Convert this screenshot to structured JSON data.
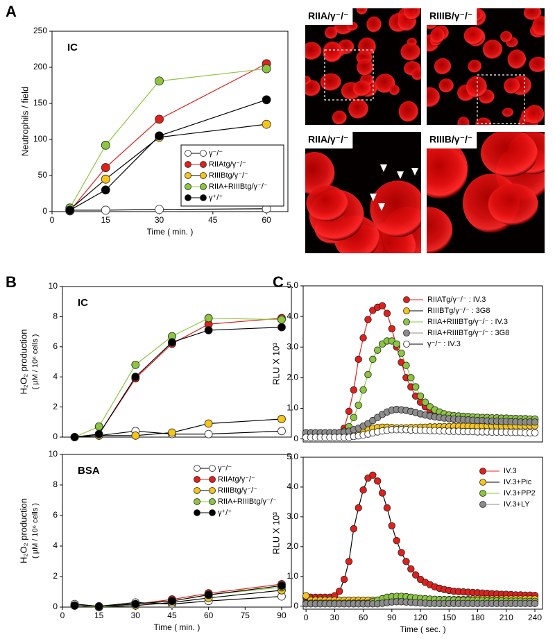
{
  "panels": [
    "A",
    "B",
    "C"
  ],
  "micrographs": [
    {
      "label": "RIIA/γ⁻/⁻"
    },
    {
      "label": "RIIIB/γ⁻/⁻"
    },
    {
      "label": "RIIA/γ⁻/⁻"
    },
    {
      "label": "RIIIB/γ⁻/⁻"
    }
  ],
  "chart_data": [
    {
      "type": "line",
      "annotation": "IC",
      "xlabel": "Time ( min. )",
      "ylabel": "Neutrophils / field",
      "x": [
        5,
        15,
        30,
        60
      ],
      "xlim": [
        0,
        66
      ],
      "xticks": [
        0,
        15,
        30,
        45,
        60
      ],
      "ylim": [
        0,
        250
      ],
      "yticks": [
        0,
        50,
        100,
        150,
        200,
        250
      ],
      "legend": "lower right",
      "legend_frame": true,
      "series": [
        {
          "name": "γ⁻/⁻",
          "color": "#ffffff",
          "values": [
            2,
            2,
            3,
            4
          ]
        },
        {
          "name": "RIIAtg/γ⁻/⁻",
          "color": "#e0201b",
          "values": [
            1,
            61,
            128,
            205
          ]
        },
        {
          "name": "RIIIBtg/γ⁻/⁻",
          "color": "#f5c518",
          "values": [
            3,
            45,
            103,
            121
          ]
        },
        {
          "name": "RIIA+RIIIBtg/γ⁻/⁻",
          "color": "#8cc63f",
          "values": [
            5,
            92,
            181,
            198
          ]
        },
        {
          "name": "γ⁺/⁺",
          "color": "#000000",
          "values": [
            2,
            30,
            105,
            155
          ]
        }
      ]
    },
    {
      "type": "line",
      "annotation": "IC",
      "ylabel": "H₂O₂ production",
      "ylabel2": "( µM / 10⁶ cells )",
      "x": [
        5,
        15,
        30,
        45,
        60,
        90
      ],
      "xlim": [
        0,
        94
      ],
      "ylim": [
        0,
        10
      ],
      "yticks": [
        0,
        2,
        4,
        6,
        8,
        10
      ],
      "series": [
        {
          "color": "#ffffff",
          "values": [
            0,
            0.1,
            0.4,
            0.2,
            0.2,
            0.4
          ]
        },
        {
          "color": "#e0201b",
          "values": [
            0,
            0.2,
            3.9,
            6.2,
            7.5,
            7.9
          ]
        },
        {
          "color": "#f5c518",
          "values": [
            0,
            0.1,
            0.1,
            0.3,
            0.9,
            1.2
          ]
        },
        {
          "color": "#8cc63f",
          "values": [
            0,
            0.7,
            4.8,
            6.7,
            7.9,
            7.8
          ]
        },
        {
          "color": "#000000",
          "values": [
            0,
            0.2,
            4.0,
            6.3,
            7.1,
            7.3
          ]
        }
      ]
    },
    {
      "type": "line",
      "annotation": "BSA",
      "xlabel": "Time ( min. )",
      "ylabel": "H₂O₂ production",
      "ylabel2": "( µM / 10⁶ cells )",
      "x": [
        5,
        15,
        30,
        45,
        60,
        90
      ],
      "xlim": [
        0,
        94
      ],
      "xticks": [
        0,
        15,
        30,
        45,
        60,
        75,
        90
      ],
      "ylim": [
        0,
        10
      ],
      "yticks": [
        0,
        2,
        4,
        6,
        8,
        10
      ],
      "legend": "upper right",
      "series": [
        {
          "name": "γ⁻/⁻",
          "color": "#ffffff",
          "values": [
            0.2,
            0.05,
            0.3,
            0.2,
            0.4,
            0.7
          ]
        },
        {
          "name": "RIIAtg/γ⁻/⁻",
          "color": "#e0201b",
          "values": [
            0.1,
            0,
            0.2,
            0.5,
            0.9,
            1.5
          ]
        },
        {
          "name": "RIIIBtg/γ⁻/⁻",
          "color": "#f5c518",
          "values": [
            0.1,
            0,
            0.1,
            0.3,
            0.6,
            1.1
          ]
        },
        {
          "name": "RIIA+RIIIBtg/γ⁻/⁻",
          "color": "#8cc63f",
          "values": [
            0.1,
            0,
            0.2,
            0.4,
            0.8,
            1.3
          ]
        },
        {
          "name": "γ⁺/⁺",
          "color": "#000000",
          "values": [
            0.1,
            0.05,
            0.2,
            0.4,
            0.8,
            1.4
          ]
        }
      ]
    },
    {
      "type": "line",
      "ylabel": "RLU X 10³",
      "x": [
        0,
        5,
        10,
        15,
        20,
        25,
        30,
        35,
        40,
        45,
        50,
        55,
        60,
        65,
        70,
        75,
        80,
        85,
        90,
        95,
        100,
        105,
        110,
        115,
        120,
        125,
        130,
        135,
        140,
        145,
        150,
        155,
        160,
        165,
        170,
        175,
        180,
        185,
        190,
        195,
        200,
        205,
        210,
        215,
        220,
        225,
        230,
        235,
        240
      ],
      "xlim": [
        -3,
        248
      ],
      "ylim": [
        -0.1,
        5
      ],
      "yticks": [
        0,
        {
          "value": 1,
          "label": "1.0"
        },
        {
          "value": 2,
          "label": "2.0"
        },
        {
          "value": 3,
          "label": "3.0"
        },
        {
          "value": 4,
          "label": "4.0"
        },
        {
          "value": 5,
          "label": "5.0"
        }
      ],
      "legend": "upper right",
      "series": [
        {
          "name": "RIIATg/γ⁻/⁻ : IV.3",
          "color": "#e0201b",
          "values": [
            0.15,
            0.15,
            0.15,
            0.15,
            0.15,
            0.15,
            0.17,
            0.2,
            0.35,
            0.9,
            1.6,
            2.6,
            3.3,
            3.9,
            4.2,
            4.3,
            4.35,
            4.1,
            3.6,
            3.0,
            2.5,
            2.0,
            1.7,
            1.4,
            1.2,
            1.05,
            0.95,
            0.88,
            0.82,
            0.78,
            0.75,
            0.73,
            0.72,
            0.71,
            0.7,
            0.7,
            0.69,
            0.68,
            0.68,
            0.67,
            0.67,
            0.66,
            0.66,
            0.65,
            0.65,
            0.64,
            0.64,
            0.63,
            0.63
          ]
        },
        {
          "name": "RIIIBTg/γ⁻/⁻ : 3G8",
          "color": "#f5c518",
          "values": [
            0.1,
            0.1,
            0.1,
            0.1,
            0.1,
            0.1,
            0.1,
            0.1,
            0.12,
            0.15,
            0.2,
            0.25,
            0.3,
            0.33,
            0.35,
            0.37,
            0.38,
            0.38,
            0.37,
            0.36,
            0.36,
            0.36,
            0.37,
            0.37,
            0.38,
            0.38,
            0.39,
            0.39,
            0.4,
            0.4,
            0.4,
            0.41,
            0.41,
            0.41,
            0.41,
            0.41,
            0.41,
            0.42,
            0.42,
            0.42,
            0.42,
            0.42,
            0.42,
            0.43,
            0.43,
            0.43,
            0.43,
            0.43,
            0.43
          ]
        },
        {
          "name": "RIIA+RIIIBTg/γ⁻/⁻ : IV.3",
          "color": "#8cc63f",
          "values": [
            0.2,
            0.2,
            0.2,
            0.2,
            0.2,
            0.2,
            0.2,
            0.2,
            0.25,
            0.4,
            0.7,
            1.1,
            1.6,
            2.1,
            2.6,
            2.9,
            3.1,
            3.2,
            3.2,
            3.1,
            2.8,
            2.4,
            2.0,
            1.7,
            1.4,
            1.2,
            1.05,
            0.95,
            0.88,
            0.82,
            0.78,
            0.76,
            0.75,
            0.74,
            0.73,
            0.72,
            0.71,
            0.7,
            0.7,
            0.69,
            0.69,
            0.68,
            0.68,
            0.67,
            0.67,
            0.66,
            0.66,
            0.65,
            0.65
          ]
        },
        {
          "name": "RIIA+RIIIBTg/γ⁻/⁻ : 3G8",
          "color": "#8c8c8c",
          "values": [
            0.2,
            0.2,
            0.2,
            0.2,
            0.2,
            0.2,
            0.2,
            0.2,
            0.22,
            0.25,
            0.3,
            0.35,
            0.42,
            0.5,
            0.6,
            0.7,
            0.8,
            0.88,
            0.94,
            0.96,
            0.95,
            0.93,
            0.9,
            0.86,
            0.82,
            0.78,
            0.75,
            0.72,
            0.7,
            0.68,
            0.66,
            0.65,
            0.64,
            0.63,
            0.62,
            0.61,
            0.6,
            0.6,
            0.59,
            0.58,
            0.58,
            0.57,
            0.57,
            0.56,
            0.56,
            0.55,
            0.55,
            0.55,
            0.55
          ]
        },
        {
          "name": "γ⁻/⁻ : IV.3",
          "color": "#ffffff",
          "values": [
            0.05,
            0.05,
            0.05,
            0.05,
            0.05,
            0.05,
            0.05,
            0.05,
            0.05,
            0.05,
            0.08,
            0.1,
            0.13,
            0.16,
            0.2,
            0.23,
            0.26,
            0.28,
            0.3,
            0.3,
            0.3,
            0.3,
            0.29,
            0.29,
            0.28,
            0.28,
            0.27,
            0.27,
            0.26,
            0.26,
            0.25,
            0.25,
            0.25,
            0.24,
            0.24,
            0.24,
            0.23,
            0.23,
            0.23,
            0.22,
            0.22,
            0.22,
            0.22,
            0.21,
            0.21,
            0.21,
            0.2,
            0.2,
            0.2
          ]
        }
      ]
    },
    {
      "type": "line",
      "xlabel": "Time ( sec. )",
      "ylabel": "RLU X 10³",
      "x": [
        0,
        5,
        10,
        15,
        20,
        25,
        30,
        35,
        40,
        45,
        50,
        55,
        60,
        65,
        70,
        75,
        80,
        85,
        90,
        95,
        100,
        105,
        110,
        115,
        120,
        125,
        130,
        135,
        140,
        145,
        150,
        155,
        160,
        165,
        170,
        175,
        180,
        185,
        190,
        195,
        200,
        205,
        210,
        215,
        220,
        225,
        230,
        235,
        240
      ],
      "xlim": [
        -3,
        248
      ],
      "xticks": [
        0,
        30,
        60,
        90,
        120,
        150,
        180,
        210,
        240
      ],
      "ylim": [
        -0.1,
        5
      ],
      "yticks": [
        0,
        {
          "value": 1,
          "label": "1.0"
        },
        {
          "value": 2,
          "label": "2.0"
        },
        {
          "value": 3,
          "label": "3.0"
        },
        {
          "value": 4,
          "label": "4.0"
        },
        {
          "value": 5,
          "label": "5.0"
        }
      ],
      "legend": "upper right",
      "series": [
        {
          "name": "IV.3",
          "color": "#e0201b",
          "values": [
            0.3,
            0.3,
            0.3,
            0.3,
            0.3,
            0.3,
            0.35,
            0.5,
            0.9,
            1.5,
            2.6,
            3.3,
            3.9,
            4.3,
            4.4,
            4.2,
            3.8,
            3.3,
            2.7,
            2.2,
            1.8,
            1.5,
            1.25,
            1.05,
            0.9,
            0.8,
            0.72,
            0.65,
            0.6,
            0.56,
            0.53,
            0.5,
            0.49,
            0.48,
            0.47,
            0.46,
            0.45,
            0.44,
            0.43,
            0.42,
            0.41,
            0.4,
            0.4,
            0.39,
            0.38,
            0.38,
            0.37,
            0.37,
            0.36
          ]
        },
        {
          "name": "IV.3+Pic",
          "color": "#f5c518",
          "values": [
            0.35,
            0.2,
            0.2,
            0.2,
            0.2,
            0.2,
            0.2,
            0.2,
            0.2,
            0.2,
            0.2,
            0.2,
            0.2,
            0.2,
            0.2,
            0.2,
            0.2,
            0.2,
            0.2,
            0.2,
            0.2,
            0.22,
            0.22,
            0.22,
            0.22,
            0.22,
            0.22,
            0.22,
            0.22,
            0.22,
            0.22,
            0.22,
            0.22,
            0.22,
            0.22,
            0.24,
            0.24,
            0.24,
            0.24,
            0.24,
            0.24,
            0.24,
            0.24,
            0.24,
            0.24,
            0.24,
            0.24,
            0.24,
            0.24
          ]
        },
        {
          "name": "IV.3+PP2",
          "color": "#8cc63f",
          "values": [
            0.1,
            0.1,
            0.1,
            0.1,
            0.1,
            0.1,
            0.1,
            0.1,
            0.1,
            0.1,
            0.1,
            0.1,
            0.1,
            0.1,
            0.15,
            0.2,
            0.25,
            0.3,
            0.32,
            0.33,
            0.33,
            0.32,
            0.3,
            0.28,
            0.26,
            0.25,
            0.24,
            0.23,
            0.22,
            0.22,
            0.21,
            0.21,
            0.2,
            0.2,
            0.2,
            0.19,
            0.19,
            0.19,
            0.18,
            0.18,
            0.18,
            0.18,
            0.17,
            0.17,
            0.17,
            0.17,
            0.16,
            0.16,
            0.16
          ]
        },
        {
          "name": "IV.3+LY",
          "color": "#8c8c8c",
          "values": [
            0.08,
            0.08,
            0.08,
            0.08,
            0.08,
            0.08,
            0.08,
            0.08,
            0.08,
            0.08,
            0.08,
            0.08,
            0.08,
            0.08,
            0.08,
            0.08,
            0.1,
            0.12,
            0.14,
            0.15,
            0.15,
            0.14,
            0.13,
            0.12,
            0.11,
            0.1,
            0.09,
            0.09,
            0.09,
            0.09,
            0.09,
            0.09,
            0.09,
            0.09,
            0.09,
            0.09,
            0.09,
            0.09,
            0.09,
            0.09,
            0.09,
            0.09,
            0.09,
            0.09,
            0.09,
            0.09,
            0.09,
            0.09,
            0.09
          ]
        }
      ]
    }
  ]
}
